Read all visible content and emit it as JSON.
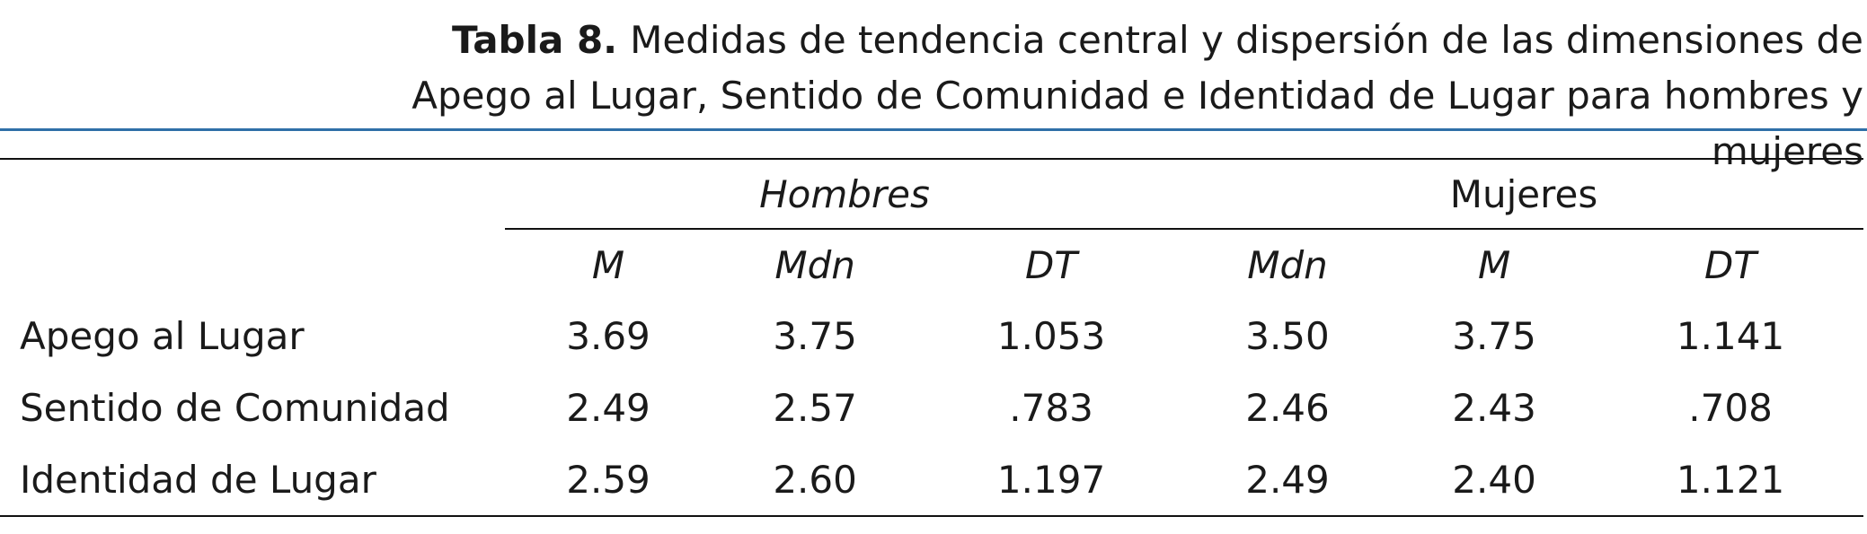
{
  "caption": {
    "label": "Tabla 8.",
    "text": "Medidas de tendencia central y dispersión de las dimensiones de Apego al Lugar, Sentido de Comunidad e Identidad de Lugar para hombres y mujeres"
  },
  "groups": [
    "Hombres",
    "Mujeres"
  ],
  "columns": [
    "M",
    "Mdn",
    "DT",
    "Mdn",
    "M",
    "DT"
  ],
  "rows": [
    {
      "label": "Apego al Lugar",
      "values": [
        "3.69",
        "3.75",
        "1.053",
        "3.50",
        "3.75",
        "1.141"
      ]
    },
    {
      "label": "Sentido de Comunidad",
      "values": [
        "2.49",
        "2.57",
        ".783",
        "2.46",
        "2.43",
        ".708"
      ]
    },
    {
      "label": "Identidad de Lugar",
      "values": [
        "2.59",
        "2.60",
        "1.197",
        "2.49",
        "2.40",
        "1.121"
      ]
    }
  ]
}
